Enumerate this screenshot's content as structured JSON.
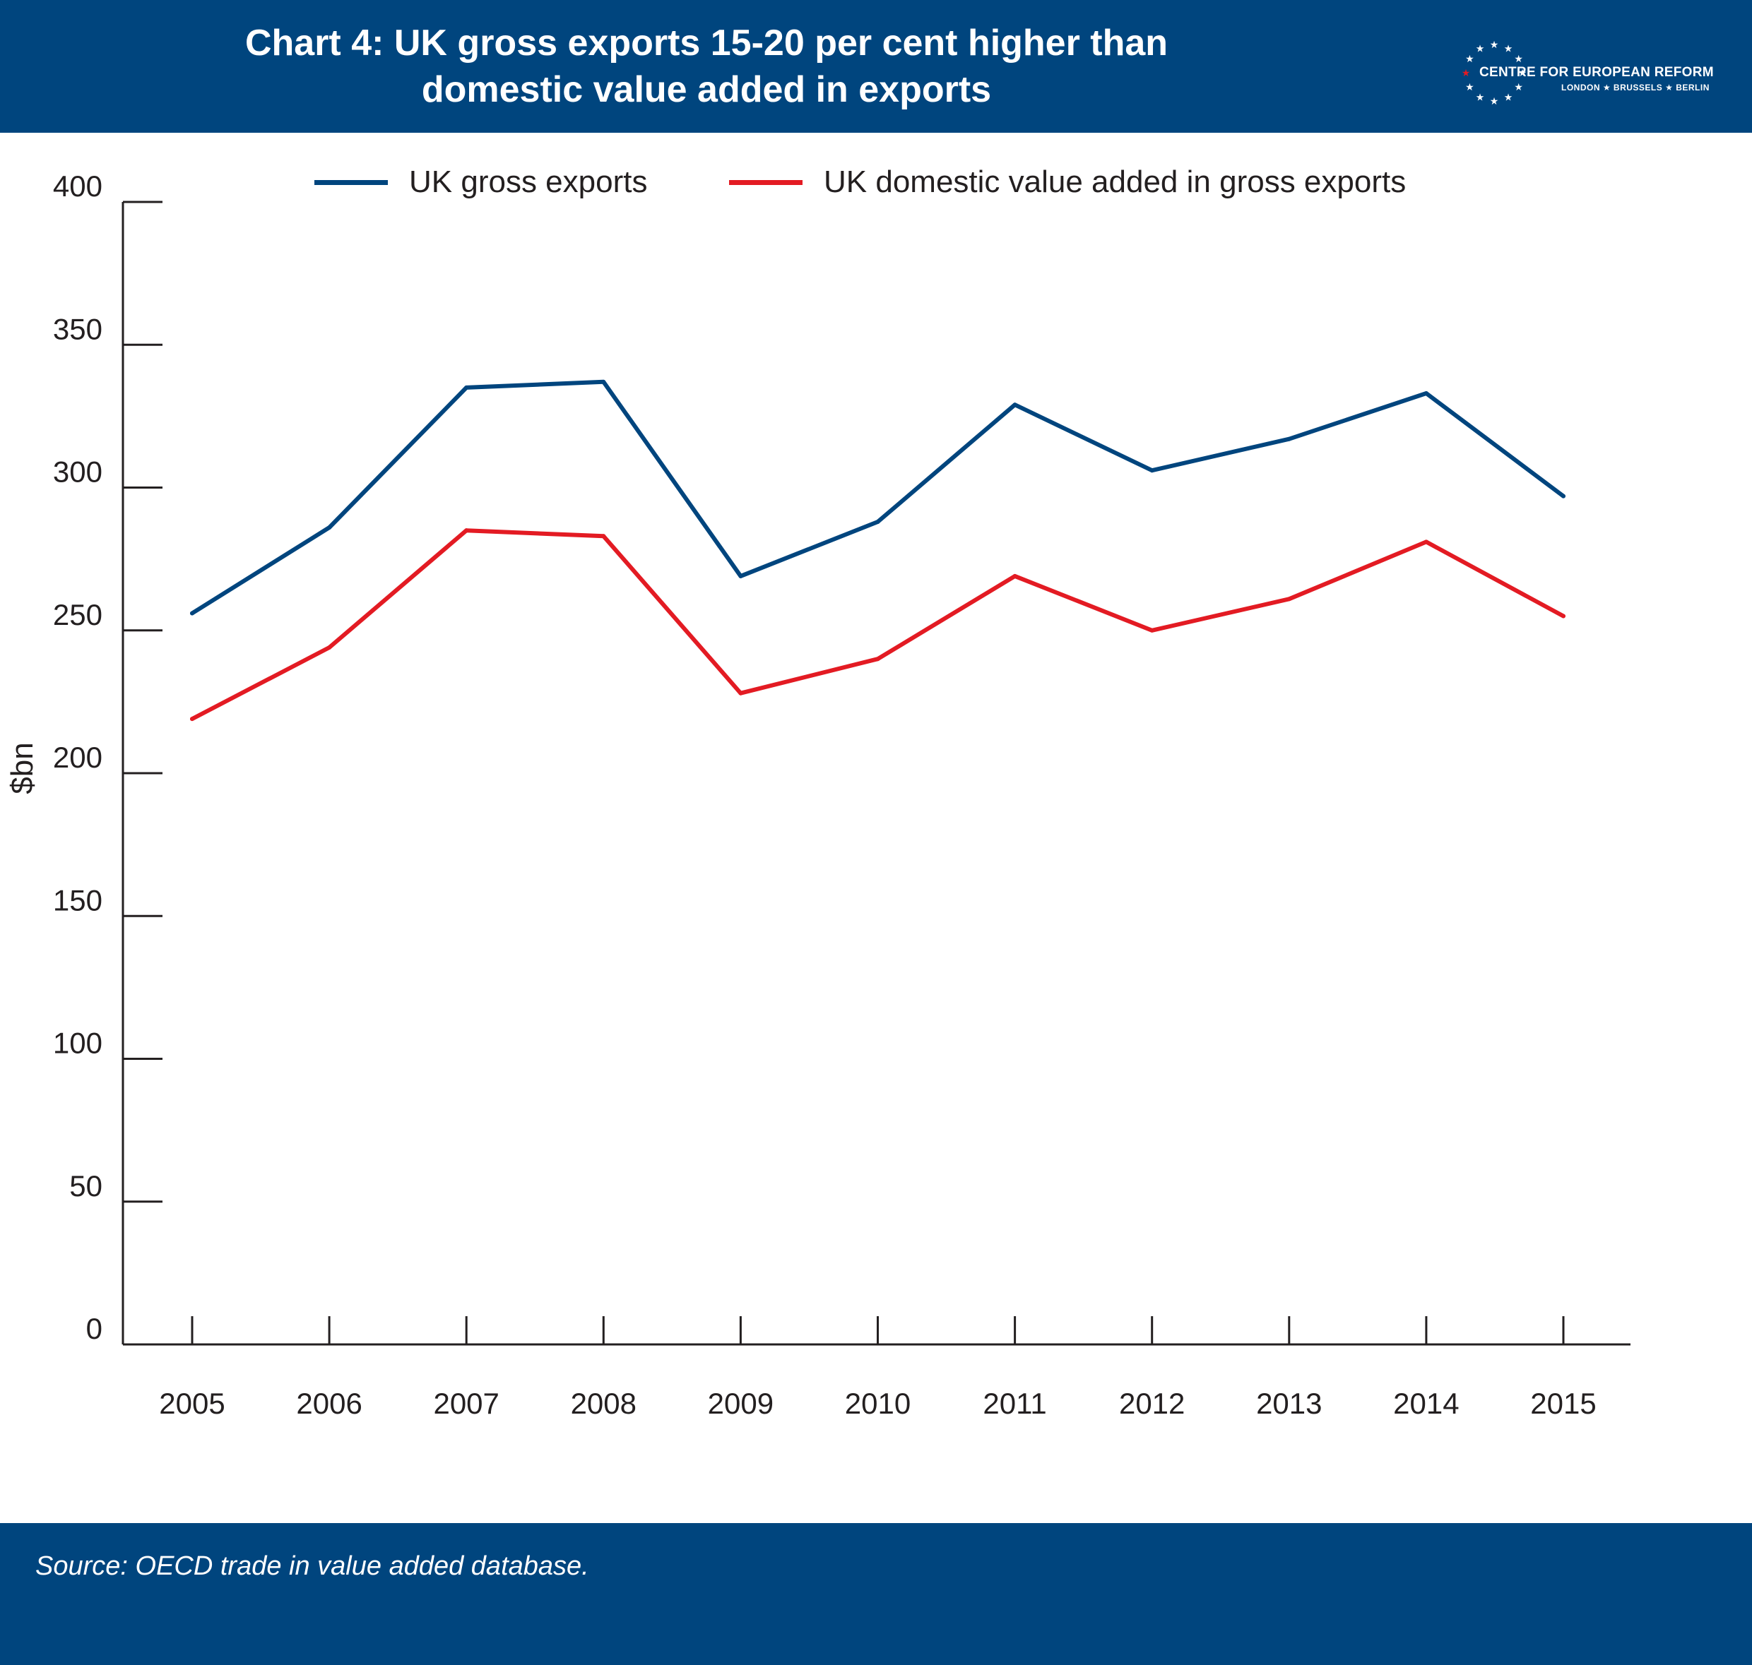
{
  "header": {
    "title_line1": "Chart 4: UK gross exports 15-20 per cent higher than",
    "title_line2": "domestic value added in exports",
    "background": "#00457e"
  },
  "logo": {
    "name": "CENTRE FOR EUROPEAN REFORM",
    "cities": "LONDON ★ BRUSSELS ★ BERLIN",
    "star_color": "#ffffff",
    "accent_star_color": "#e31b23"
  },
  "footer": {
    "source": "Source: OECD trade in value added database."
  },
  "chart_data": {
    "type": "line",
    "title": "Chart 4: UK gross exports 15-20 per cent higher than domestic value added in exports",
    "xlabel": "",
    "ylabel": "$bn",
    "x": [
      "2005",
      "2006",
      "2007",
      "2008",
      "2009",
      "2010",
      "2011",
      "2012",
      "2013",
      "2014",
      "2015"
    ],
    "ylim": [
      0,
      400
    ],
    "yticks": [
      0,
      50,
      100,
      150,
      200,
      250,
      300,
      350,
      400
    ],
    "grid": false,
    "legend_position": "top-center",
    "series": [
      {
        "name": "UK gross exports",
        "color": "#00457e",
        "values": [
          256,
          286,
          335,
          337,
          269,
          288,
          329,
          306,
          317,
          333,
          297
        ]
      },
      {
        "name": "UK domestic value added in gross exports",
        "color": "#e31b23",
        "values": [
          219,
          244,
          285,
          283,
          228,
          240,
          269,
          250,
          261,
          281,
          255
        ]
      }
    ]
  }
}
